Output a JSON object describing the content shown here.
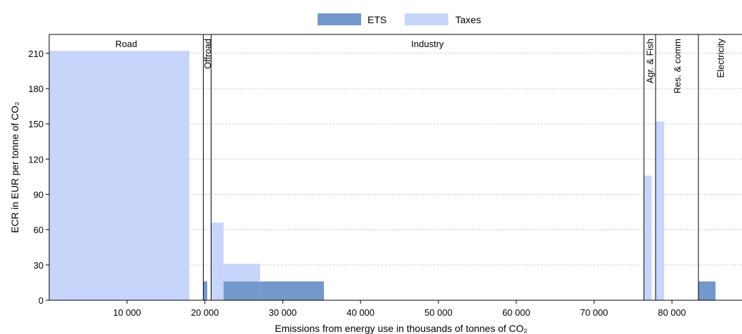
{
  "chart_data": {
    "type": "bar",
    "subtype": "variable-width stacked bars by sector",
    "legend": {
      "position": "top-center",
      "items": [
        {
          "name": "ETS",
          "color": "#7398cb"
        },
        {
          "name": "Taxes",
          "color": "#c8d5fa"
        }
      ]
    },
    "x_axis": {
      "label": "Emissions from energy use in thousands of tonnes of CO₂",
      "range": [
        0,
        89000
      ],
      "ticks": [
        10000,
        20000,
        30000,
        40000,
        50000,
        60000,
        70000,
        80000
      ],
      "tick_labels": [
        "10 000",
        "20 000",
        "30 000",
        "40 000",
        "50 000",
        "60 000",
        "70 000",
        "80 000"
      ]
    },
    "y_axis": {
      "label": "ECR in EUR per tonne of CO₂",
      "range": [
        0,
        226
      ],
      "ticks": [
        0,
        30,
        60,
        90,
        120,
        150,
        180,
        210
      ],
      "tick_labels": [
        "0",
        "30",
        "60",
        "90",
        "120",
        "150",
        "180",
        "210"
      ],
      "grid": "dotted horizontal"
    },
    "sectors": [
      {
        "name": "Road",
        "x_start": 0,
        "x_end": 19800,
        "label_orientation": "horizontal"
      },
      {
        "name": "Offroad",
        "x_start": 19800,
        "x_end": 20800,
        "label_orientation": "vertical"
      },
      {
        "name": "Industry",
        "x_start": 20800,
        "x_end": 76400,
        "label_orientation": "horizontal"
      },
      {
        "name": "Agr. & Fish",
        "x_start": 76400,
        "x_end": 77900,
        "label_orientation": "vertical"
      },
      {
        "name": "Res. & comm",
        "x_start": 77900,
        "x_end": 83400,
        "label_orientation": "vertical"
      },
      {
        "name": "Electricity",
        "x_start": 83400,
        "x_end": 89000,
        "label_orientation": "vertical"
      }
    ],
    "bars": [
      {
        "x_start": 0,
        "x_end": 18000,
        "ets": 0,
        "taxes": 212
      },
      {
        "x_start": 19800,
        "x_end": 20300,
        "ets": 16,
        "taxes": 0
      },
      {
        "x_start": 20800,
        "x_end": 22400,
        "ets": 0,
        "taxes": 66
      },
      {
        "x_start": 22400,
        "x_end": 27100,
        "ets": 16,
        "taxes": 15
      },
      {
        "x_start": 27100,
        "x_end": 35300,
        "ets": 16,
        "taxes": 0
      },
      {
        "x_start": 76400,
        "x_end": 77400,
        "ets": 0,
        "taxes": 106
      },
      {
        "x_start": 77900,
        "x_end": 79000,
        "ets": 0,
        "taxes": 152
      },
      {
        "x_start": 83400,
        "x_end": 85600,
        "ets": 16,
        "taxes": 0
      }
    ]
  }
}
